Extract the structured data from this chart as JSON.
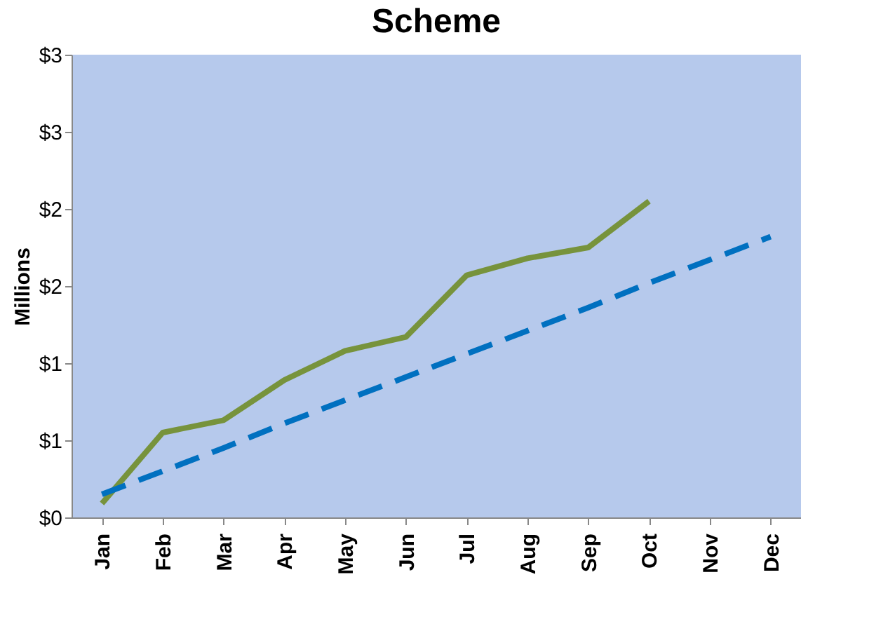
{
  "chart_data": {
    "type": "line",
    "title": "Scheme",
    "ylabel": "Millions",
    "categories": [
      "Jan",
      "Feb",
      "Mar",
      "Apr",
      "May",
      "Jun",
      "Jul",
      "Aug",
      "Sep",
      "Oct",
      "Nov",
      "Dec"
    ],
    "series": [
      {
        "color": "#77933c",
        "line_style": "solid",
        "values": [
          0.09,
          0.55,
          0.63,
          0.89,
          1.08,
          1.17,
          1.57,
          1.68,
          1.75,
          2.05,
          null,
          null
        ]
      },
      {
        "color": "#0070c0",
        "line_style": "dashed",
        "values": [
          0.15,
          0.3,
          0.45,
          0.61,
          0.76,
          0.91,
          1.06,
          1.21,
          1.36,
          1.52,
          1.67,
          1.82
        ]
      }
    ],
    "ylim": [
      0,
      3
    ],
    "yticks": [
      {
        "value": 0,
        "label": "$0"
      },
      {
        "value": 0.5,
        "label": "$1"
      },
      {
        "value": 1,
        "label": "$1"
      },
      {
        "value": 1.5,
        "label": "$2"
      },
      {
        "value": 2,
        "label": "$2"
      },
      {
        "value": 2.5,
        "label": "$3"
      },
      {
        "value": 3,
        "label": "$3"
      }
    ],
    "grid": false,
    "marker": "none"
  }
}
